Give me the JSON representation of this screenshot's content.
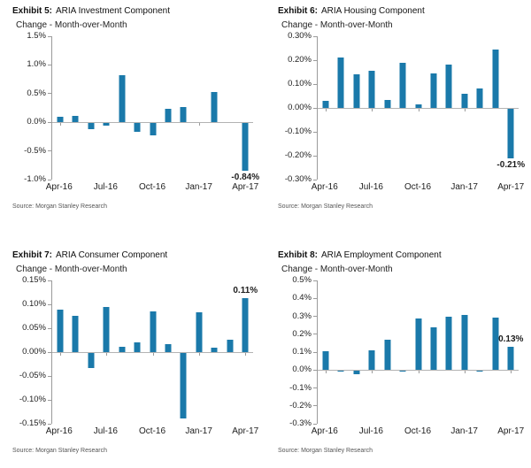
{
  "chart_data": [
    {
      "exhibit_label": "Exhibit 5:",
      "title": "ARIA Investment Component",
      "subtitle": "Change - Month-over-Month",
      "source": "Source: Morgan Stanley Research",
      "type": "bar",
      "bar_color": "#1a79aa",
      "categories": [
        "Apr-16",
        "May-16",
        "Jun-16",
        "Jul-16",
        "Aug-16",
        "Sep-16",
        "Oct-16",
        "Nov-16",
        "Dec-16",
        "Jan-17",
        "Feb-17",
        "Mar-17",
        "Apr-17"
      ],
      "values": [
        0.09,
        0.11,
        -0.12,
        -0.06,
        0.82,
        -0.17,
        -0.23,
        0.23,
        0.26,
        0.0,
        0.53,
        0.0,
        -0.84
      ],
      "ylim": [
        -1.0,
        1.5
      ],
      "yticks": [
        {
          "v": 1.5,
          "label": "1.5%"
        },
        {
          "v": 1.0,
          "label": "1.0%"
        },
        {
          "v": 0.5,
          "label": "0.5%"
        },
        {
          "v": 0.0,
          "label": "0.0%"
        },
        {
          "v": -0.5,
          "label": "-0.5%"
        },
        {
          "v": -1.0,
          "label": "-1.0%"
        }
      ],
      "xticks": [
        {
          "i": 0,
          "label": "Apr-16"
        },
        {
          "i": 3,
          "label": "Jul-16"
        },
        {
          "i": 6,
          "label": "Oct-16"
        },
        {
          "i": 9,
          "label": "Jan-17"
        },
        {
          "i": 12,
          "label": "Apr-17"
        }
      ],
      "annotation": {
        "i": 12,
        "text": "-0.84%"
      }
    },
    {
      "exhibit_label": "Exhibit 6:",
      "title": "ARIA Housing Component",
      "subtitle": "Change - Month-over-Month",
      "source": "Source: Morgan Stanley Research",
      "type": "bar",
      "bar_color": "#1a79aa",
      "categories": [
        "Apr-16",
        "May-16",
        "Jun-16",
        "Jul-16",
        "Aug-16",
        "Sep-16",
        "Oct-16",
        "Nov-16",
        "Dec-16",
        "Jan-17",
        "Feb-17",
        "Mar-17",
        "Apr-17"
      ],
      "values": [
        0.03,
        0.21,
        0.14,
        0.155,
        0.035,
        0.19,
        0.015,
        0.145,
        0.18,
        0.06,
        0.08,
        0.245,
        -0.21
      ],
      "ylim": [
        -0.3,
        0.3
      ],
      "yticks": [
        {
          "v": 0.3,
          "label": "0.30%"
        },
        {
          "v": 0.2,
          "label": "0.20%"
        },
        {
          "v": 0.1,
          "label": "0.10%"
        },
        {
          "v": 0.0,
          "label": "0.00%"
        },
        {
          "v": -0.1,
          "label": "-0.10%"
        },
        {
          "v": -0.2,
          "label": "-0.20%"
        },
        {
          "v": -0.3,
          "label": "-0.30%"
        }
      ],
      "xticks": [
        {
          "i": 0,
          "label": "Apr-16"
        },
        {
          "i": 3,
          "label": "Jul-16"
        },
        {
          "i": 6,
          "label": "Oct-16"
        },
        {
          "i": 9,
          "label": "Jan-17"
        },
        {
          "i": 12,
          "label": "Apr-17"
        }
      ],
      "annotation": {
        "i": 12,
        "text": "-0.21%"
      }
    },
    {
      "exhibit_label": "Exhibit 7:",
      "title": "ARIA Consumer Component",
      "subtitle": "Change - Month-over-Month",
      "source": "Source: Morgan Stanley Research",
      "type": "bar",
      "bar_color": "#1a79aa",
      "categories": [
        "Apr-16",
        "May-16",
        "Jun-16",
        "Jul-16",
        "Aug-16",
        "Sep-16",
        "Oct-16",
        "Nov-16",
        "Dec-16",
        "Jan-17",
        "Feb-17",
        "Mar-17",
        "Apr-17"
      ],
      "values": [
        0.088,
        0.076,
        -0.034,
        0.095,
        0.011,
        0.021,
        0.086,
        0.016,
        -0.138,
        0.083,
        0.009,
        0.026,
        0.113
      ],
      "ylim": [
        -0.15,
        0.15
      ],
      "yticks": [
        {
          "v": 0.15,
          "label": "0.15%"
        },
        {
          "v": 0.1,
          "label": "0.10%"
        },
        {
          "v": 0.05,
          "label": "0.05%"
        },
        {
          "v": 0.0,
          "label": "0.00%"
        },
        {
          "v": -0.05,
          "label": "-0.05%"
        },
        {
          "v": -0.1,
          "label": "-0.10%"
        },
        {
          "v": -0.15,
          "label": "-0.15%"
        }
      ],
      "xticks": [
        {
          "i": 0,
          "label": "Apr-16"
        },
        {
          "i": 3,
          "label": "Jul-16"
        },
        {
          "i": 6,
          "label": "Oct-16"
        },
        {
          "i": 9,
          "label": "Jan-17"
        },
        {
          "i": 12,
          "label": "Apr-17"
        }
      ],
      "annotation": {
        "i": 12,
        "text": "0.11%"
      }
    },
    {
      "exhibit_label": "Exhibit 8:",
      "title": "ARIA Employment Component",
      "subtitle": "Change - Month-over-Month",
      "source": "Source: Morgan Stanley Research",
      "type": "bar",
      "bar_color": "#1a79aa",
      "categories": [
        "Apr-16",
        "May-16",
        "Jun-16",
        "Jul-16",
        "Aug-16",
        "Sep-16",
        "Oct-16",
        "Nov-16",
        "Dec-16",
        "Jan-17",
        "Feb-17",
        "Mar-17",
        "Apr-17"
      ],
      "values": [
        0.105,
        -0.01,
        -0.025,
        0.11,
        0.17,
        -0.005,
        0.29,
        0.24,
        0.3,
        0.305,
        -0.01,
        0.295,
        0.13
      ],
      "ylim": [
        -0.3,
        0.5
      ],
      "yticks": [
        {
          "v": 0.5,
          "label": "0.5%"
        },
        {
          "v": 0.4,
          "label": "0.4%"
        },
        {
          "v": 0.3,
          "label": "0.3%"
        },
        {
          "v": 0.2,
          "label": "0.2%"
        },
        {
          "v": 0.1,
          "label": "0.1%"
        },
        {
          "v": 0.0,
          "label": "0.0%"
        },
        {
          "v": -0.1,
          "label": "-0.1%"
        },
        {
          "v": -0.2,
          "label": "-0.2%"
        },
        {
          "v": -0.3,
          "label": "-0.3%"
        }
      ],
      "xticks": [
        {
          "i": 0,
          "label": "Apr-16"
        },
        {
          "i": 3,
          "label": "Jul-16"
        },
        {
          "i": 6,
          "label": "Oct-16"
        },
        {
          "i": 9,
          "label": "Jan-17"
        },
        {
          "i": 12,
          "label": "Apr-17"
        }
      ],
      "annotation": {
        "i": 12,
        "text": "0.13%"
      }
    }
  ]
}
